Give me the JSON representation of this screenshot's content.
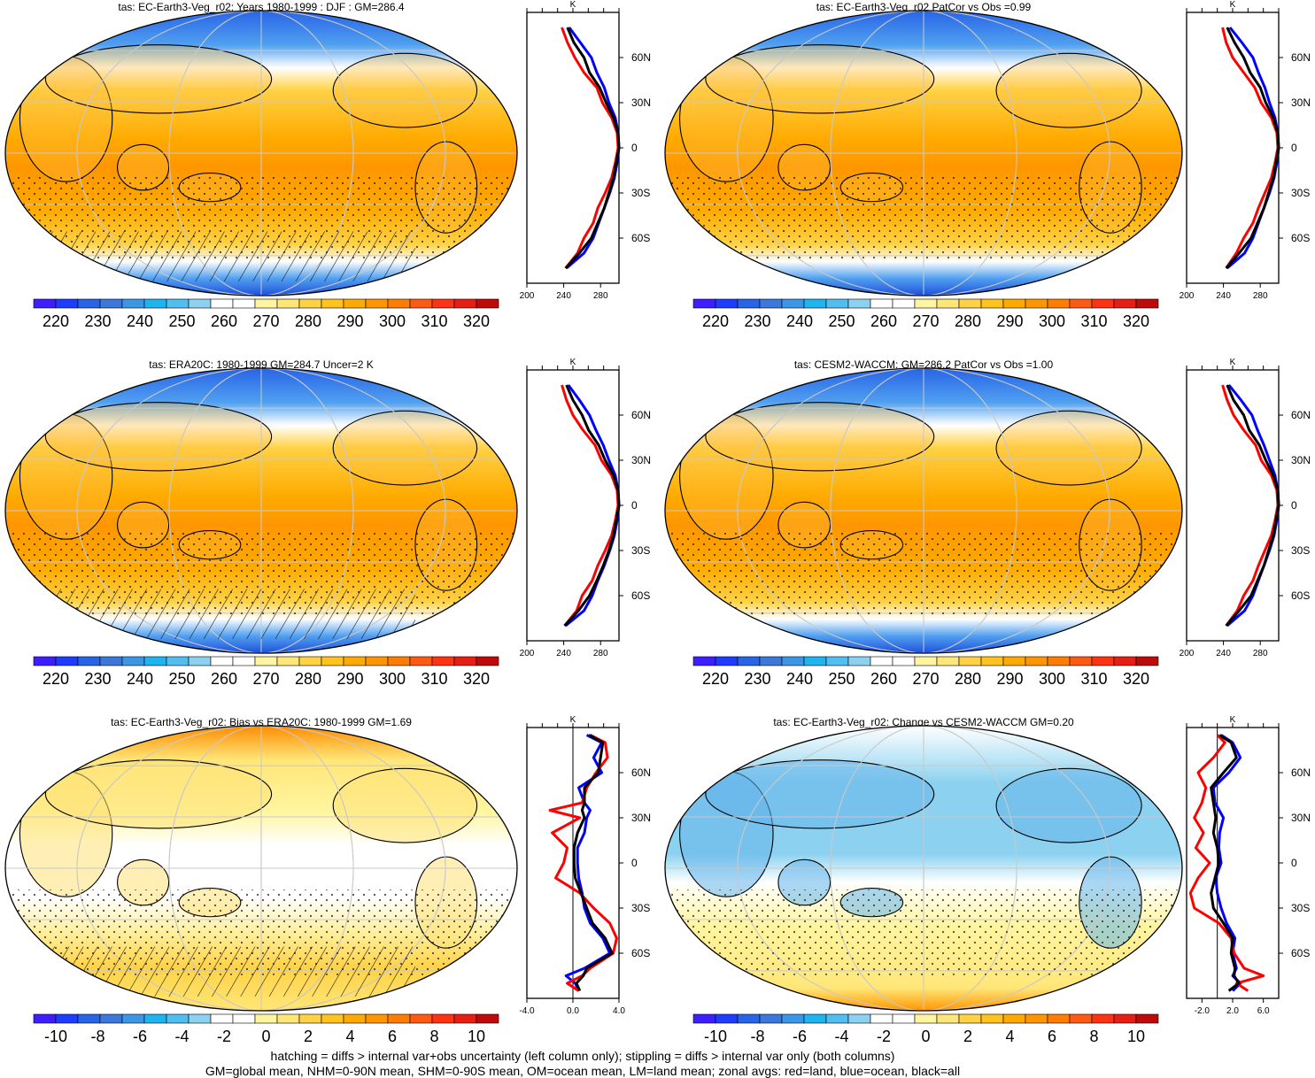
{
  "chart_data": [
    {
      "type": "heatmap",
      "title": "tas: EC-Earth3-Veg_r02: Years 1980-1999 : DJF : GM=286.4",
      "colorbar": {
        "ticks": [
          "220",
          "230",
          "240",
          "250",
          "260",
          "270",
          "280",
          "290",
          "300",
          "310",
          "320"
        ]
      },
      "zonal": {
        "unit": "K",
        "xticks": [
          "200",
          "240",
          "280"
        ],
        "xlim": [
          200,
          300
        ],
        "ylim": [
          -90,
          90
        ],
        "lat": [
          -80,
          -70,
          -60,
          -50,
          -40,
          -30,
          -20,
          -10,
          0,
          10,
          20,
          30,
          40,
          50,
          60,
          70,
          80
        ],
        "land": [
          242,
          255,
          262,
          272,
          277,
          285,
          292,
          296,
          299,
          298,
          292,
          282,
          276,
          262,
          252,
          244,
          238
        ],
        "ocean": [
          243,
          262,
          272,
          278,
          284,
          290,
          295,
          298,
          300,
          299,
          296,
          289,
          284,
          276,
          270,
          258,
          246
        ],
        "all": [
          242,
          257,
          270,
          277,
          284,
          289,
          294,
          297,
          300,
          299,
          294,
          286,
          279,
          268,
          262,
          251,
          244
        ]
      }
    },
    {
      "type": "heatmap",
      "title": "tas: EC-Earth3-Veg_r02 PatCor vs Obs =0.99",
      "colorbar": {
        "ticks": [
          "220",
          "230",
          "240",
          "250",
          "260",
          "270",
          "280",
          "290",
          "300",
          "310",
          "320"
        ]
      },
      "zonal": {
        "unit": "K",
        "xticks": [
          "200",
          "240",
          "280"
        ],
        "xlim": [
          200,
          300
        ],
        "ylim": [
          -90,
          90
        ],
        "lat": [
          -80,
          -70,
          -60,
          -50,
          -40,
          -30,
          -20,
          -10,
          0,
          10,
          20,
          30,
          40,
          50,
          60,
          70,
          80
        ],
        "land": [
          243,
          254,
          262,
          272,
          278,
          285,
          292,
          296,
          299,
          298,
          292,
          281,
          274,
          262,
          250,
          243,
          239
        ],
        "ocean": [
          244,
          263,
          272,
          278,
          284,
          290,
          295,
          298,
          300,
          299,
          296,
          290,
          285,
          278,
          272,
          260,
          247
        ],
        "all": [
          243,
          257,
          270,
          277,
          284,
          289,
          294,
          297,
          300,
          299,
          294,
          286,
          280,
          269,
          262,
          252,
          244
        ]
      }
    },
    {
      "type": "heatmap",
      "title": "tas: ERA20C: 1980-1999 GM=284.7 Uncer=2 K",
      "colorbar": {
        "ticks": [
          "220",
          "230",
          "240",
          "250",
          "260",
          "270",
          "280",
          "290",
          "300",
          "310",
          "320"
        ]
      },
      "zonal": {
        "unit": "K",
        "xticks": [
          "200",
          "240",
          "280"
        ],
        "xlim": [
          200,
          300
        ],
        "ylim": [
          -90,
          90
        ],
        "lat": [
          -80,
          -70,
          -60,
          -50,
          -40,
          -30,
          -20,
          -10,
          0,
          10,
          20,
          30,
          40,
          50,
          60,
          70,
          80
        ],
        "land": [
          241,
          254,
          260,
          271,
          277,
          285,
          292,
          296,
          299,
          298,
          292,
          281,
          274,
          261,
          250,
          243,
          238
        ],
        "ocean": [
          242,
          262,
          271,
          277,
          284,
          290,
          295,
          298,
          300,
          299,
          296,
          289,
          283,
          275,
          268,
          257,
          245
        ],
        "all": [
          241,
          256,
          268,
          276,
          283,
          289,
          294,
          297,
          300,
          299,
          294,
          285,
          278,
          267,
          260,
          250,
          243
        ]
      }
    },
    {
      "type": "heatmap",
      "title": "tas: CESM2-WACCM: GM=286.2 PatCor vs Obs =1.00",
      "colorbar": {
        "ticks": [
          "220",
          "230",
          "240",
          "250",
          "260",
          "270",
          "280",
          "290",
          "300",
          "310",
          "320"
        ]
      },
      "zonal": {
        "unit": "K",
        "xticks": [
          "200",
          "240",
          "280"
        ],
        "xlim": [
          200,
          300
        ],
        "ylim": [
          -90,
          90
        ],
        "lat": [
          -80,
          -70,
          -60,
          -50,
          -40,
          -30,
          -20,
          -10,
          0,
          10,
          20,
          30,
          40,
          50,
          60,
          70,
          80
        ],
        "land": [
          243,
          255,
          262,
          272,
          278,
          285,
          292,
          296,
          299,
          298,
          292,
          281,
          275,
          262,
          251,
          244,
          239
        ],
        "ocean": [
          244,
          263,
          272,
          278,
          284,
          290,
          295,
          298,
          300,
          299,
          296,
          290,
          284,
          277,
          271,
          259,
          246
        ],
        "all": [
          243,
          257,
          270,
          277,
          284,
          289,
          294,
          297,
          300,
          299,
          294,
          286,
          279,
          268,
          262,
          251,
          244
        ]
      }
    },
    {
      "type": "heatmap",
      "title": "tas: EC-Earth3-Veg_r02: Bias vs ERA20C: 1980-1999 GM=1.69",
      "colorbar": {
        "ticks": [
          "-10",
          "-8",
          "-6",
          "-4",
          "-2",
          "0",
          "2",
          "4",
          "6",
          "8",
          "10"
        ]
      },
      "zonal": {
        "unit": "K",
        "xticks": [
          "-4.0",
          "0.0",
          "4.0"
        ],
        "xlim": [
          -4,
          4
        ],
        "ylim": [
          -90,
          90
        ],
        "lat": [
          -85,
          -80,
          -75,
          -70,
          -60,
          -50,
          -40,
          -30,
          -20,
          -10,
          0,
          10,
          20,
          30,
          35,
          40,
          50,
          60,
          70,
          80,
          85
        ],
        "land": [
          0.5,
          -0.5,
          0.8,
          1.5,
          3.5,
          3.8,
          3.2,
          1.8,
          0.6,
          -1.5,
          -0.8,
          -0.5,
          -1.8,
          0.6,
          -2.0,
          0.8,
          1.2,
          2.0,
          3.0,
          2.8,
          1.5
        ],
        "ocean": [
          0.5,
          0.2,
          -0.6,
          1.0,
          3.2,
          2.6,
          1.5,
          1.0,
          0.8,
          0.5,
          0.4,
          0.4,
          1.0,
          1.2,
          1.5,
          1.0,
          0.5,
          2.5,
          1.8,
          2.5,
          1.2
        ],
        "all": [
          0.6,
          0.3,
          0.9,
          1.2,
          3.4,
          2.8,
          1.7,
          1.2,
          0.7,
          0.2,
          0.1,
          0.1,
          0.4,
          1.0,
          0.8,
          1.0,
          1.0,
          2.2,
          2.4,
          2.6,
          1.4
        ]
      }
    },
    {
      "type": "heatmap",
      "title": "tas: EC-Earth3-Veg_r02: Change vs CESM2-WACCM GM=0.20",
      "colorbar": {
        "ticks": [
          "-10",
          "-8",
          "-6",
          "-4",
          "-2",
          "0",
          "2",
          "4",
          "6",
          "8",
          "10"
        ]
      },
      "zonal": {
        "unit": "K",
        "xticks": [
          "-2.0",
          "2.0",
          "6.0"
        ],
        "xlim": [
          -4,
          8
        ],
        "ylim": [
          -90,
          90
        ],
        "lat": [
          -85,
          -80,
          -75,
          -70,
          -60,
          -50,
          -40,
          -30,
          -20,
          -10,
          0,
          10,
          20,
          30,
          40,
          50,
          60,
          70,
          80,
          85
        ],
        "land": [
          4.0,
          2.5,
          6.0,
          3.5,
          2.2,
          1.8,
          0.2,
          -3.0,
          -3.5,
          -2.5,
          -1.0,
          -2.8,
          -1.8,
          -3.0,
          -2.0,
          -1.5,
          -2.5,
          -0.5,
          1.0,
          0.0
        ],
        "ocean": [
          2.0,
          3.0,
          2.0,
          2.5,
          2.0,
          2.3,
          1.2,
          0.5,
          0.0,
          -0.2,
          0.5,
          0.2,
          0.3,
          0.8,
          -0.3,
          -0.5,
          1.5,
          3.0,
          2.0,
          0.5
        ],
        "all": [
          1.5,
          2.8,
          2.2,
          2.3,
          1.8,
          2.0,
          0.8,
          -0.5,
          -0.8,
          -0.3,
          0.2,
          0.0,
          -0.5,
          -0.2,
          -0.5,
          -0.8,
          0.8,
          2.5,
          1.8,
          0.3
        ]
      }
    }
  ],
  "footer": {
    "line1": "hatching = diffs > internal var+obs uncertainty (left column only); stippling = diffs > internal var only (both columns)",
    "line2": "GM=global mean, NHM=0-90N mean, SHM=0-90S mean, OM=ocean mean, LM=land mean; zonal avgs: red=land, blue=ocean, black=all"
  },
  "lat_axis": [
    "60N",
    "30N",
    "0",
    "30S",
    "60S"
  ],
  "colors": {
    "land": "#ff0000",
    "ocean": "#0000ff",
    "all": "#000000"
  },
  "scale_colors": [
    "#3c1eff",
    "#1e3cff",
    "#2864e6",
    "#3c78dc",
    "#3c96e6",
    "#1eb4f0",
    "#50bef0",
    "#8cd2f0",
    "#ffffff",
    "#ffffff",
    "#fff5a0",
    "#ffe678",
    "#ffd246",
    "#ffc31e",
    "#ffaa00",
    "#ff9600",
    "#ff7d00",
    "#ff5a14",
    "#ff3214",
    "#e61e14",
    "#be0a0a"
  ]
}
